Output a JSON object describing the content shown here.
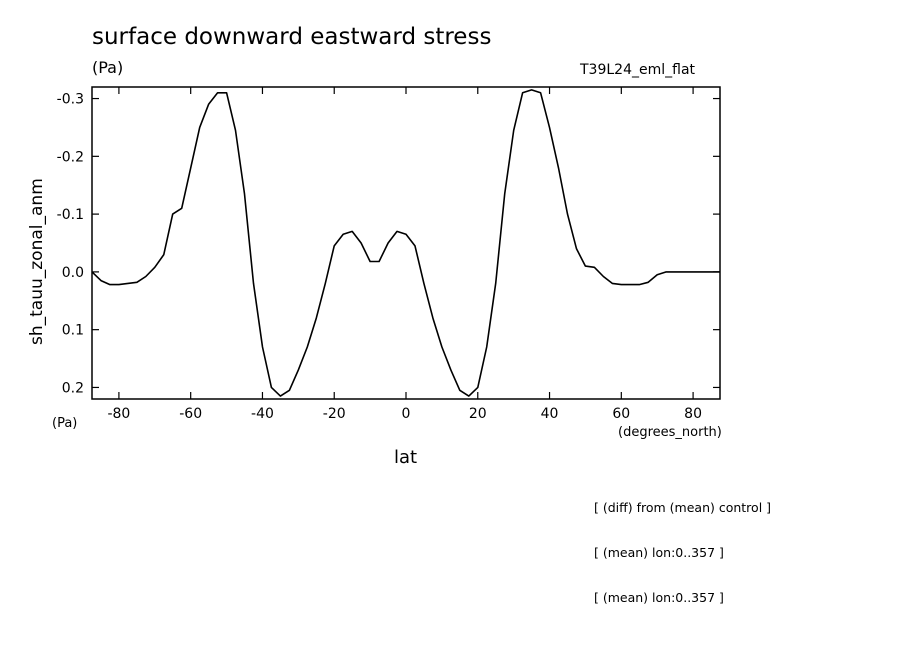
{
  "chart_data": {
    "type": "line",
    "title": "surface downward eastward stress",
    "units_label": "(Pa)",
    "run_label": "T39L24_eml_flat",
    "ylabel": "sh_tauu_zonal_anm",
    "yunits": "(Pa)",
    "xlabel": "lat",
    "xunits": "(degrees_north)",
    "xlim": [
      -87.5,
      87.5
    ],
    "ylim": [
      -0.32,
      0.22
    ],
    "y_inverted": true,
    "xticks": [
      -80,
      -60,
      -40,
      -20,
      0,
      20,
      40,
      60,
      80
    ],
    "yticks": [
      -0.3,
      -0.2,
      -0.1,
      0.0,
      0.1,
      0.2
    ],
    "ytick_labels": [
      "-0.3",
      "-0.2",
      "-0.1",
      "0.0",
      "0.1",
      "0.2"
    ],
    "series": [
      {
        "x": [
          -87.5,
          -85,
          -82.5,
          -80,
          -77.5,
          -75,
          -72.5,
          -70,
          -67.5,
          -65,
          -62.5,
          -60,
          -57.5,
          -55,
          -52.5,
          -50,
          -47.5,
          -45,
          -42.5,
          -40,
          -37.5,
          -35,
          -32.5,
          -30,
          -27.5,
          -25,
          -22.5,
          -20,
          -17.5,
          -15,
          -12.5,
          -10,
          -7.5,
          -5,
          -2.5,
          0,
          2.5,
          5,
          7.5,
          10,
          12.5,
          15,
          17.5,
          20,
          22.5,
          25,
          27.5,
          30,
          32.5,
          35,
          37.5,
          40,
          42.5,
          45,
          47.5,
          50,
          52.5,
          55,
          57.5,
          60,
          62.5,
          65,
          67.5,
          70,
          72.5,
          75,
          77.5,
          80,
          82.5,
          85,
          87.5
        ],
        "values": [
          0.0,
          0.015,
          0.022,
          0.022,
          0.02,
          0.018,
          0.008,
          -0.008,
          -0.03,
          -0.1,
          -0.11,
          -0.18,
          -0.25,
          -0.29,
          -0.31,
          -0.31,
          -0.245,
          -0.135,
          0.02,
          0.13,
          0.2,
          0.215,
          0.205,
          0.17,
          0.13,
          0.08,
          0.02,
          -0.045,
          -0.065,
          -0.07,
          -0.05,
          -0.018,
          -0.018,
          -0.05,
          -0.07,
          -0.065,
          -0.045,
          0.02,
          0.08,
          0.13,
          0.17,
          0.205,
          0.215,
          0.2,
          0.13,
          0.02,
          -0.135,
          -0.245,
          -0.31,
          -0.315,
          -0.31,
          -0.25,
          -0.18,
          -0.1,
          -0.04,
          -0.01,
          -0.008,
          0.008,
          0.02,
          0.022,
          0.022,
          0.022,
          0.018,
          0.005,
          0.0,
          0.0,
          0.0,
          0.0,
          0.0,
          0.0,
          0.0
        ]
      }
    ],
    "notes": [
      "[ (diff) from (mean) control ]",
      "[ (mean) lon:0..357 ]",
      "[ (mean) lon:0..357 ]"
    ]
  }
}
